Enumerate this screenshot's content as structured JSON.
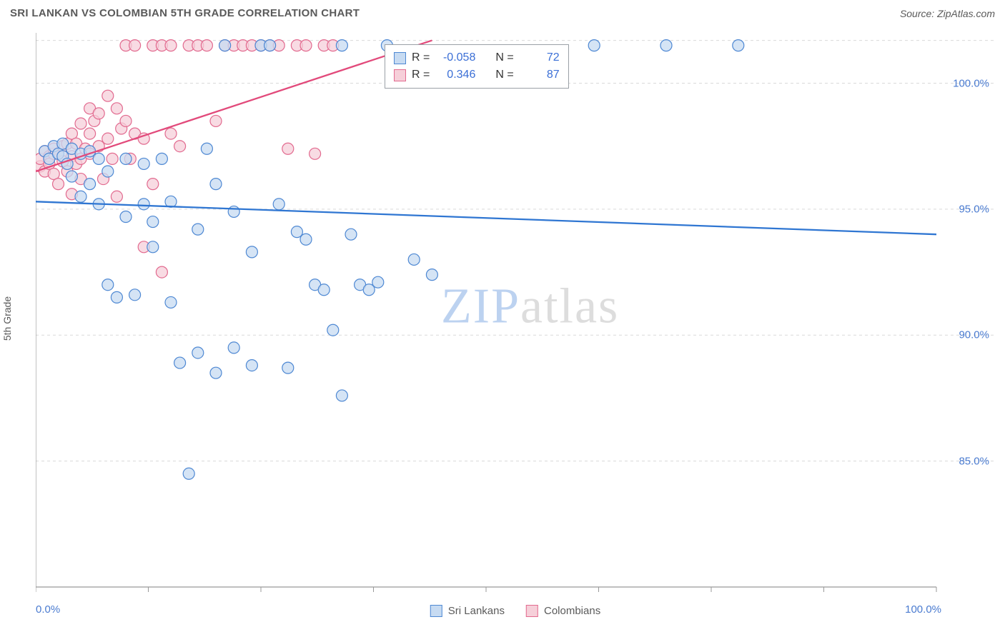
{
  "title": "SRI LANKAN VS COLOMBIAN 5TH GRADE CORRELATION CHART",
  "source": "Source: ZipAtlas.com",
  "ylabel": "5th Grade",
  "watermark": {
    "zip": "ZIP",
    "atlas": "atlas",
    "zip_color": "#bcd2f0",
    "atlas_color": "#dddddd",
    "fontsize": 70
  },
  "chart": {
    "type": "scatter",
    "background_color": "#ffffff",
    "grid_color": "#d9d9d9",
    "axis_color": "#999999",
    "xlim": [
      0,
      100
    ],
    "ylim": [
      80,
      102
    ],
    "xtick_positions": [
      0,
      12.5,
      25,
      37.5,
      50,
      62.5,
      75,
      87.5,
      100
    ],
    "xtick_labels_shown": {
      "left": "0.0%",
      "right": "100.0%"
    },
    "yticks": [
      {
        "pos": 85,
        "label": "85.0%"
      },
      {
        "pos": 90,
        "label": "90.0%"
      },
      {
        "pos": 95,
        "label": "95.0%"
      },
      {
        "pos": 100,
        "label": "100.0%"
      }
    ],
    "marker_radius": 8,
    "marker_stroke_width": 1.2,
    "trend_line_width": 2.3,
    "ytick_label_color": "#4a7bd0",
    "xtick_label_color": "#4a7bd0",
    "series": [
      {
        "name": "Sri Lankans",
        "fill": "#c7dbf2",
        "stroke": "#4e88d3",
        "line_color": "#2f76d2",
        "trend": {
          "x1": 0,
          "y1": 95.3,
          "x2": 100,
          "y2": 94.0
        },
        "stats": {
          "R": "-0.058",
          "N": "72"
        },
        "points": [
          [
            1,
            97.3
          ],
          [
            1.5,
            97.0
          ],
          [
            2,
            97.5
          ],
          [
            2.5,
            97.2
          ],
          [
            3,
            97.6
          ],
          [
            3,
            97.1
          ],
          [
            3.5,
            96.8
          ],
          [
            4,
            97.4
          ],
          [
            4,
            96.3
          ],
          [
            5,
            97.2
          ],
          [
            5,
            95.5
          ],
          [
            6,
            96.0
          ],
          [
            6,
            97.3
          ],
          [
            7,
            97.0
          ],
          [
            7,
            95.2
          ],
          [
            8,
            96.5
          ],
          [
            8,
            92.0
          ],
          [
            9,
            91.5
          ],
          [
            10,
            97.0
          ],
          [
            10,
            94.7
          ],
          [
            11,
            91.6
          ],
          [
            12,
            95.2
          ],
          [
            12,
            96.8
          ],
          [
            13,
            93.5
          ],
          [
            13,
            94.5
          ],
          [
            14,
            97.0
          ],
          [
            15,
            95.3
          ],
          [
            15,
            91.3
          ],
          [
            16,
            88.9
          ],
          [
            17,
            84.5
          ],
          [
            18,
            89.3
          ],
          [
            18,
            94.2
          ],
          [
            19,
            97.4
          ],
          [
            20,
            96.0
          ],
          [
            20,
            88.5
          ],
          [
            21,
            101.5
          ],
          [
            22,
            94.9
          ],
          [
            22,
            89.5
          ],
          [
            24,
            93.3
          ],
          [
            24,
            88.8
          ],
          [
            25,
            101.5
          ],
          [
            26,
            101.5
          ],
          [
            27,
            95.2
          ],
          [
            28,
            88.7
          ],
          [
            29,
            94.1
          ],
          [
            30,
            93.8
          ],
          [
            31,
            92.0
          ],
          [
            32,
            91.8
          ],
          [
            33,
            90.2
          ],
          [
            34,
            101.5
          ],
          [
            34,
            87.6
          ],
          [
            35,
            94.0
          ],
          [
            36,
            92.0
          ],
          [
            37,
            91.8
          ],
          [
            38,
            92.1
          ],
          [
            39,
            101.5
          ],
          [
            42,
            93.0
          ],
          [
            44,
            92.4
          ],
          [
            62,
            101.5
          ],
          [
            70,
            101.5
          ],
          [
            78,
            101.5
          ]
        ]
      },
      {
        "name": "Colombians",
        "fill": "#f6cfd9",
        "stroke": "#e26a8f",
        "line_color": "#e24a7b",
        "trend": {
          "x1": 0,
          "y1": 96.5,
          "x2": 44,
          "y2": 101.7
        },
        "stats": {
          "R": "0.346",
          "N": "87"
        },
        "points": [
          [
            0.5,
            96.7
          ],
          [
            0.5,
            97.0
          ],
          [
            1,
            97.3
          ],
          [
            1,
            96.5
          ],
          [
            1.5,
            97.1
          ],
          [
            1.5,
            96.8
          ],
          [
            2,
            97.2
          ],
          [
            2,
            96.4
          ],
          [
            2,
            97.4
          ],
          [
            2.5,
            96.0
          ],
          [
            2.5,
            97.2
          ],
          [
            3,
            97.5
          ],
          [
            3,
            96.9
          ],
          [
            3.5,
            96.5
          ],
          [
            3.5,
            97.6
          ],
          [
            4,
            98.0
          ],
          [
            4,
            97.1
          ],
          [
            4,
            95.6
          ],
          [
            4.5,
            96.8
          ],
          [
            4.5,
            97.6
          ],
          [
            5,
            98.4
          ],
          [
            5,
            97.0
          ],
          [
            5,
            96.2
          ],
          [
            5.5,
            97.4
          ],
          [
            6,
            98.0
          ],
          [
            6,
            97.2
          ],
          [
            6,
            99.0
          ],
          [
            6.5,
            98.5
          ],
          [
            7,
            97.5
          ],
          [
            7,
            98.8
          ],
          [
            7.5,
            96.2
          ],
          [
            8,
            97.8
          ],
          [
            8,
            99.5
          ],
          [
            8.5,
            97.0
          ],
          [
            9,
            99.0
          ],
          [
            9,
            95.5
          ],
          [
            9.5,
            98.2
          ],
          [
            10,
            98.5
          ],
          [
            10,
            101.5
          ],
          [
            10.5,
            97.0
          ],
          [
            11,
            98.0
          ],
          [
            11,
            101.5
          ],
          [
            12,
            93.5
          ],
          [
            12,
            97.8
          ],
          [
            13,
            101.5
          ],
          [
            13,
            96.0
          ],
          [
            14,
            92.5
          ],
          [
            14,
            101.5
          ],
          [
            15,
            101.5
          ],
          [
            15,
            98.0
          ],
          [
            16,
            97.5
          ],
          [
            17,
            101.5
          ],
          [
            18,
            101.5
          ],
          [
            19,
            101.5
          ],
          [
            20,
            98.5
          ],
          [
            21,
            101.5
          ],
          [
            22,
            101.5
          ],
          [
            23,
            101.5
          ],
          [
            24,
            101.5
          ],
          [
            25,
            101.5
          ],
          [
            26,
            101.5
          ],
          [
            27,
            101.5
          ],
          [
            28,
            97.4
          ],
          [
            29,
            101.5
          ],
          [
            30,
            101.5
          ],
          [
            31,
            97.2
          ],
          [
            32,
            101.5
          ],
          [
            33,
            101.5
          ]
        ]
      }
    ]
  },
  "legend": {
    "series1": "Sri Lankans",
    "series2": "Colombians"
  },
  "stats_box": {
    "left_swatch_label": "R =",
    "n_label": "N ="
  }
}
